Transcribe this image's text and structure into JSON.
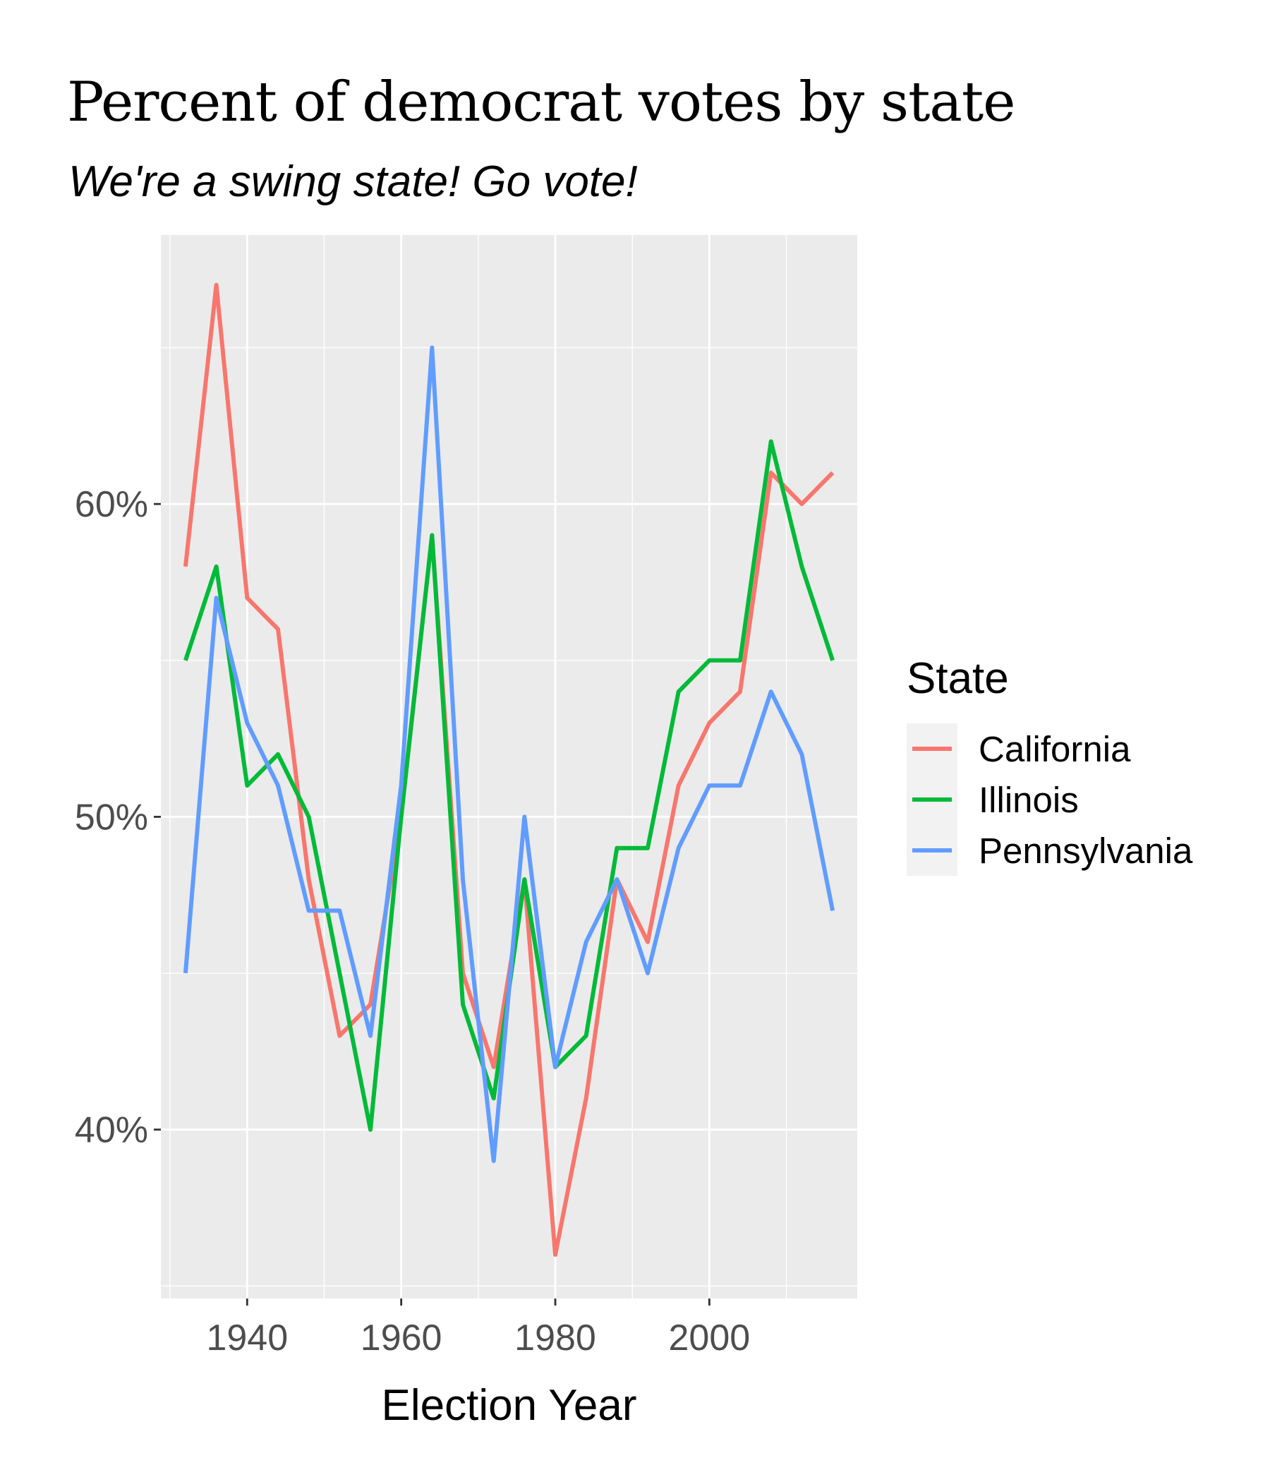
{
  "chart_data": {
    "type": "line",
    "title": "Percent of democrat votes by state",
    "subtitle": "We're a swing state! Go vote!",
    "xlabel": "Election Year",
    "ylabel": "",
    "x": [
      1932,
      1936,
      1940,
      1944,
      1948,
      1952,
      1956,
      1960,
      1964,
      1968,
      1972,
      1976,
      1980,
      1984,
      1988,
      1992,
      1996,
      2000,
      2004,
      2008,
      2012,
      2016
    ],
    "xlim": [
      1928.8,
      2019.2
    ],
    "ylim": [
      34.6,
      68.6
    ],
    "x_ticks": [
      1940,
      1960,
      1980,
      2000
    ],
    "x_tick_labels": [
      "1940",
      "1960",
      "1980",
      "2000"
    ],
    "y_ticks": [
      40,
      50,
      60
    ],
    "y_tick_labels": [
      "40%",
      "50%",
      "60%"
    ],
    "grid": true,
    "legend": {
      "title": "State",
      "position": "right"
    },
    "series": [
      {
        "name": "California",
        "color": "#F8766D",
        "values": [
          58,
          67,
          57,
          56,
          48,
          43,
          44,
          50,
          59,
          45,
          42,
          48,
          36,
          41,
          48,
          46,
          51,
          53,
          54,
          61,
          60,
          61
        ]
      },
      {
        "name": "Illinois",
        "color": "#00BA38",
        "values": [
          55,
          58,
          51,
          52,
          50,
          45,
          40,
          50,
          59,
          44,
          41,
          48,
          42,
          43,
          49,
          49,
          54,
          55,
          55,
          62,
          58,
          55
        ]
      },
      {
        "name": "Pennsylvania",
        "color": "#619CFF",
        "values": [
          45,
          57,
          53,
          51,
          47,
          47,
          43,
          51,
          65,
          48,
          39,
          50,
          42,
          46,
          48,
          45,
          49,
          51,
          51,
          54,
          52,
          47
        ]
      }
    ]
  }
}
